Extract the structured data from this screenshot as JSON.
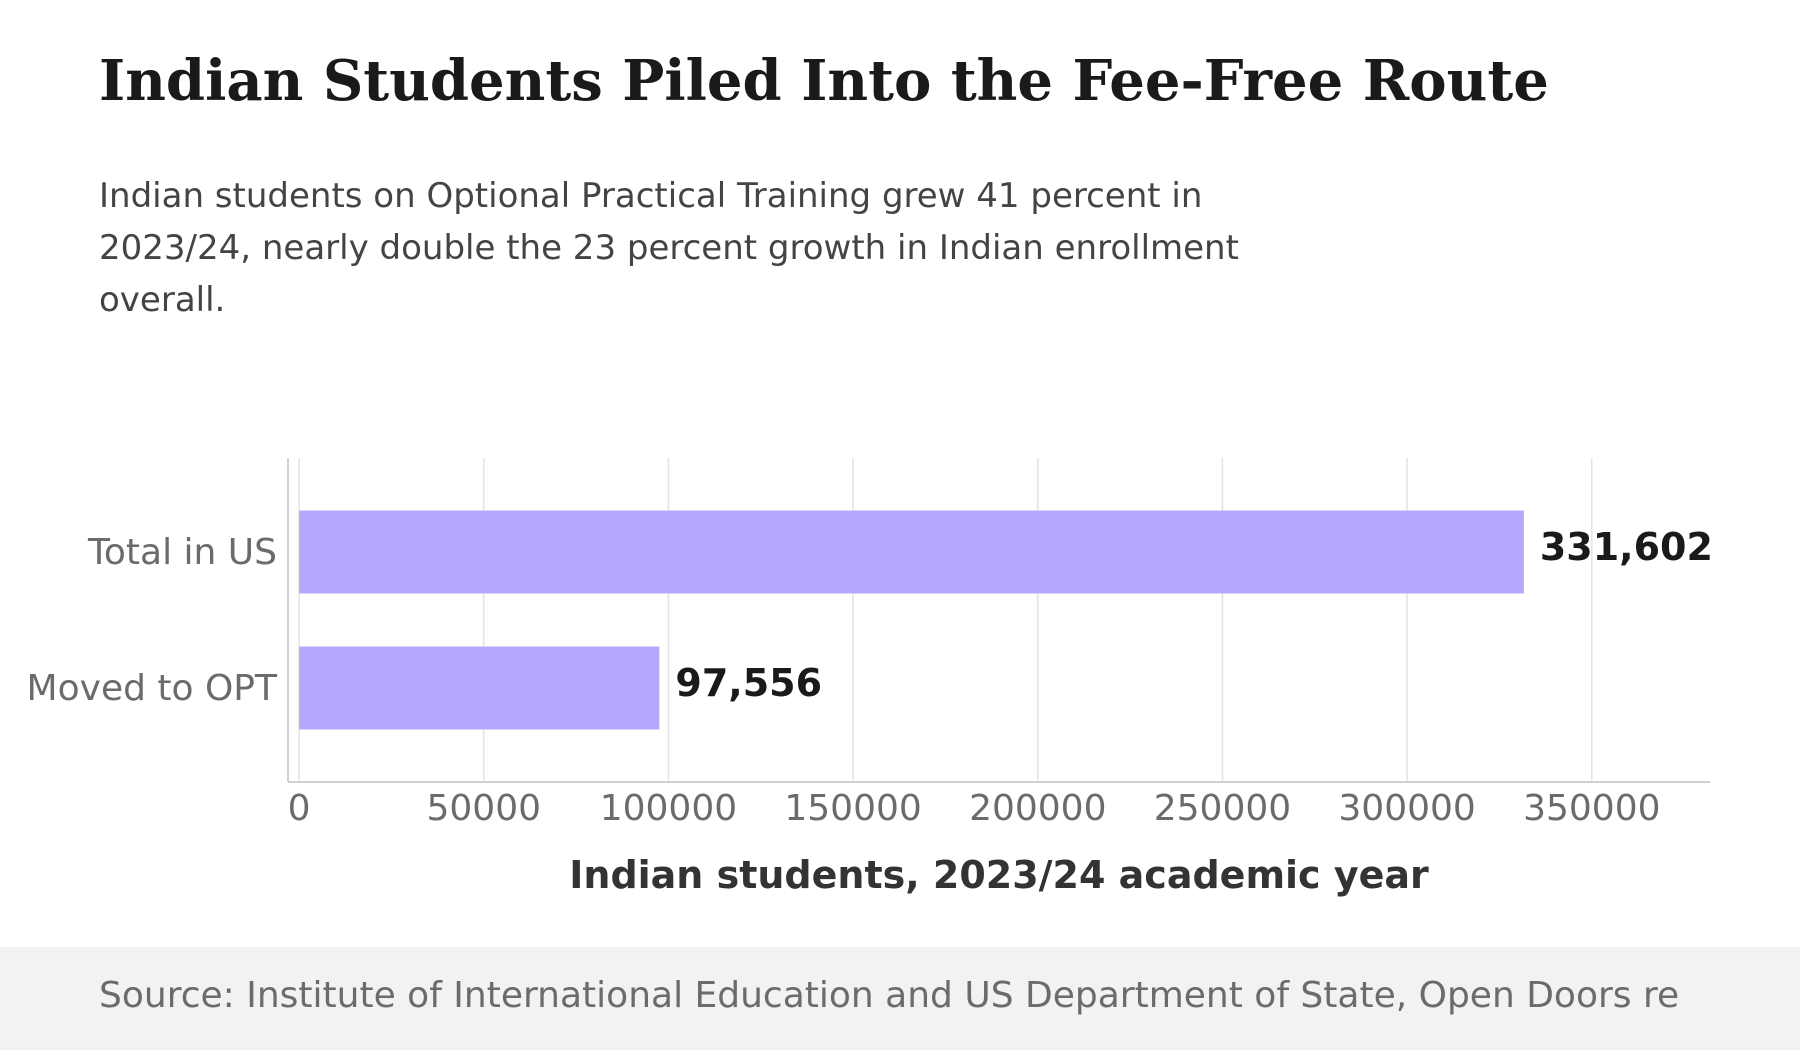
{
  "title": "Indian Students Piled Into the Fee-Free Route",
  "subtitle": "Indian students on Optional Practical Training grew 41 percent in 2023/24, nearly double the 23 percent growth in Indian enrollment overall.",
  "source": "Source: Institute of International Education and US Department of State, Open Doors re",
  "colors": {
    "bar": "#b6a8fd",
    "grid": "#e3e3e3",
    "axis": "#d0d0d0"
  },
  "chart_data": {
    "type": "bar",
    "orientation": "horizontal",
    "categories": [
      "Total in US",
      "Moved to OPT"
    ],
    "values": [
      331602,
      97556
    ],
    "value_labels": [
      "331,602",
      "97,556"
    ],
    "xlabel": "Indian students, 2023/24 academic year",
    "ylabel": "",
    "xticks": [
      "0",
      "50000",
      "100000",
      "150000",
      "200000",
      "250000",
      "300000",
      "350000"
    ],
    "xlim": [
      -3000,
      382000
    ],
    "grid": "vertical",
    "legend": "none"
  }
}
